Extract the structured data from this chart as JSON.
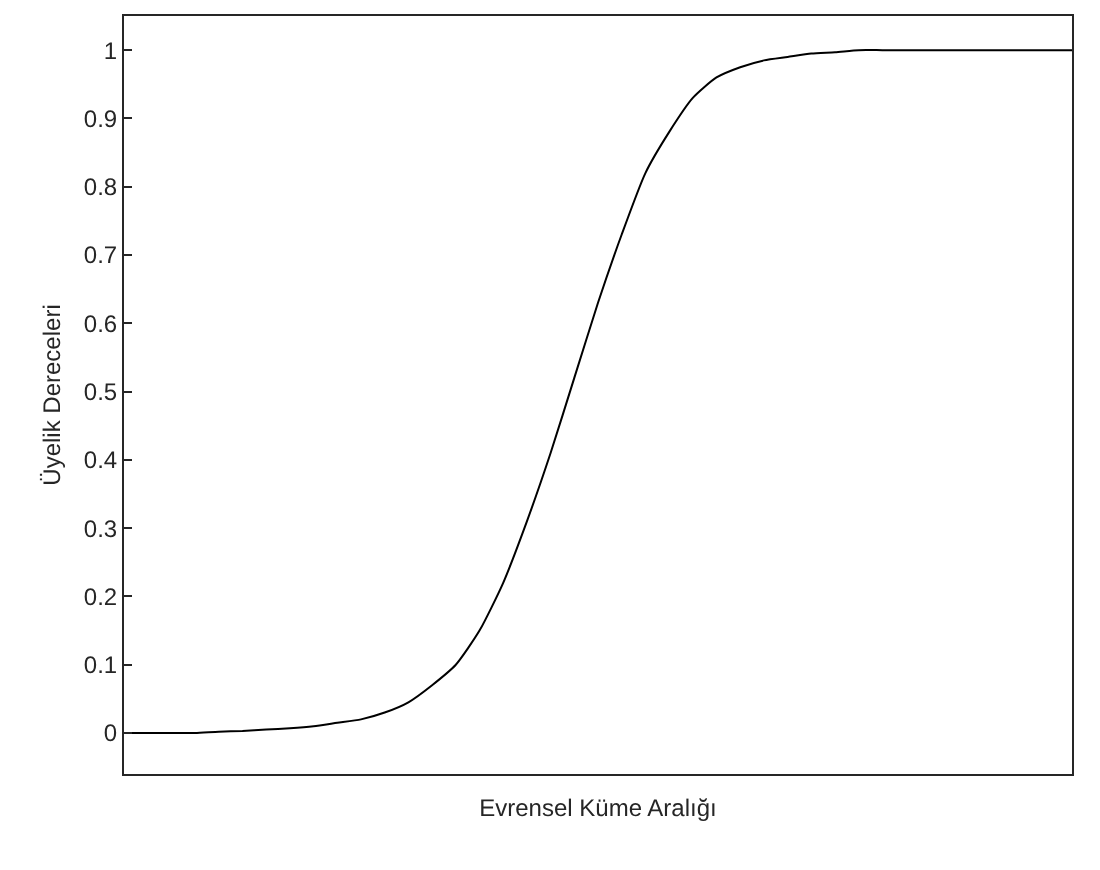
{
  "chart_data": {
    "type": "line",
    "xlabel": "Evrensel Küme Aralığı",
    "ylabel": "Üyelik Dereceleri",
    "categories": [
      null,
      null,
      null,
      null,
      null,
      null,
      null,
      null,
      null,
      null,
      null,
      null,
      null,
      null,
      null,
      null,
      null,
      null,
      null,
      null,
      null,
      null,
      null,
      null,
      null,
      null,
      null,
      null,
      null,
      null,
      null,
      null,
      null,
      null,
      null,
      null,
      null,
      null,
      null,
      null,
      null
    ],
    "series": [
      {
        "color": "#000000",
        "values": [
          0,
          0,
          0,
          0,
          0.002,
          0.003,
          0.005,
          0.007,
          0.01,
          0.015,
          0.02,
          0.03,
          0.045,
          0.07,
          0.1,
          0.15,
          0.22,
          0.31,
          0.41,
          0.52,
          0.63,
          0.73,
          0.82,
          0.88,
          0.93,
          0.96,
          0.975,
          0.985,
          0.99,
          0.995,
          0.997,
          1,
          1,
          1,
          1,
          1,
          1,
          1,
          1,
          1,
          1
        ]
      }
    ],
    "ylim": [
      -0.06,
      1.05
    ],
    "yticks": [
      0,
      0.1,
      0.2,
      0.3,
      0.4,
      0.5,
      0.6,
      0.7,
      0.8,
      0.9,
      1
    ],
    "line_style": "solid",
    "tick_labels": "y"
  }
}
